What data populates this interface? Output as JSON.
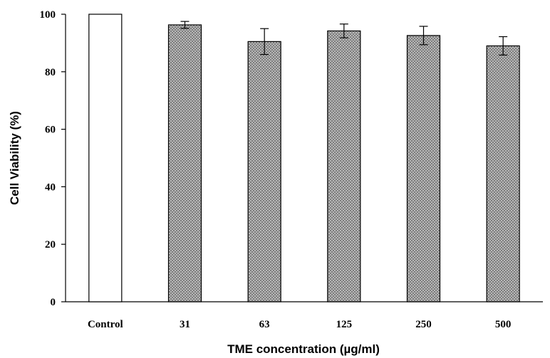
{
  "chart_data": {
    "type": "bar",
    "title": "",
    "xlabel": "TME concentration (µg/ml)",
    "ylabel": "Cell Viability (%)",
    "categories": [
      "Control",
      "31",
      "63",
      "125",
      "250",
      "500"
    ],
    "values": [
      100,
      96.3,
      90.5,
      94.2,
      92.6,
      89.0
    ],
    "errors": [
      0,
      1.2,
      4.5,
      2.4,
      3.2,
      3.2
    ],
    "ylim": [
      0,
      100
    ],
    "yticks": [
      0,
      20,
      40,
      60,
      80,
      100
    ],
    "grid": false,
    "legend": "none",
    "series_styles": [
      {
        "category": "Control",
        "fill": "#ffffff",
        "pattern": "none"
      },
      {
        "category": "treated",
        "fill": "#bdbdbd",
        "pattern": "crosshatch"
      }
    ]
  }
}
